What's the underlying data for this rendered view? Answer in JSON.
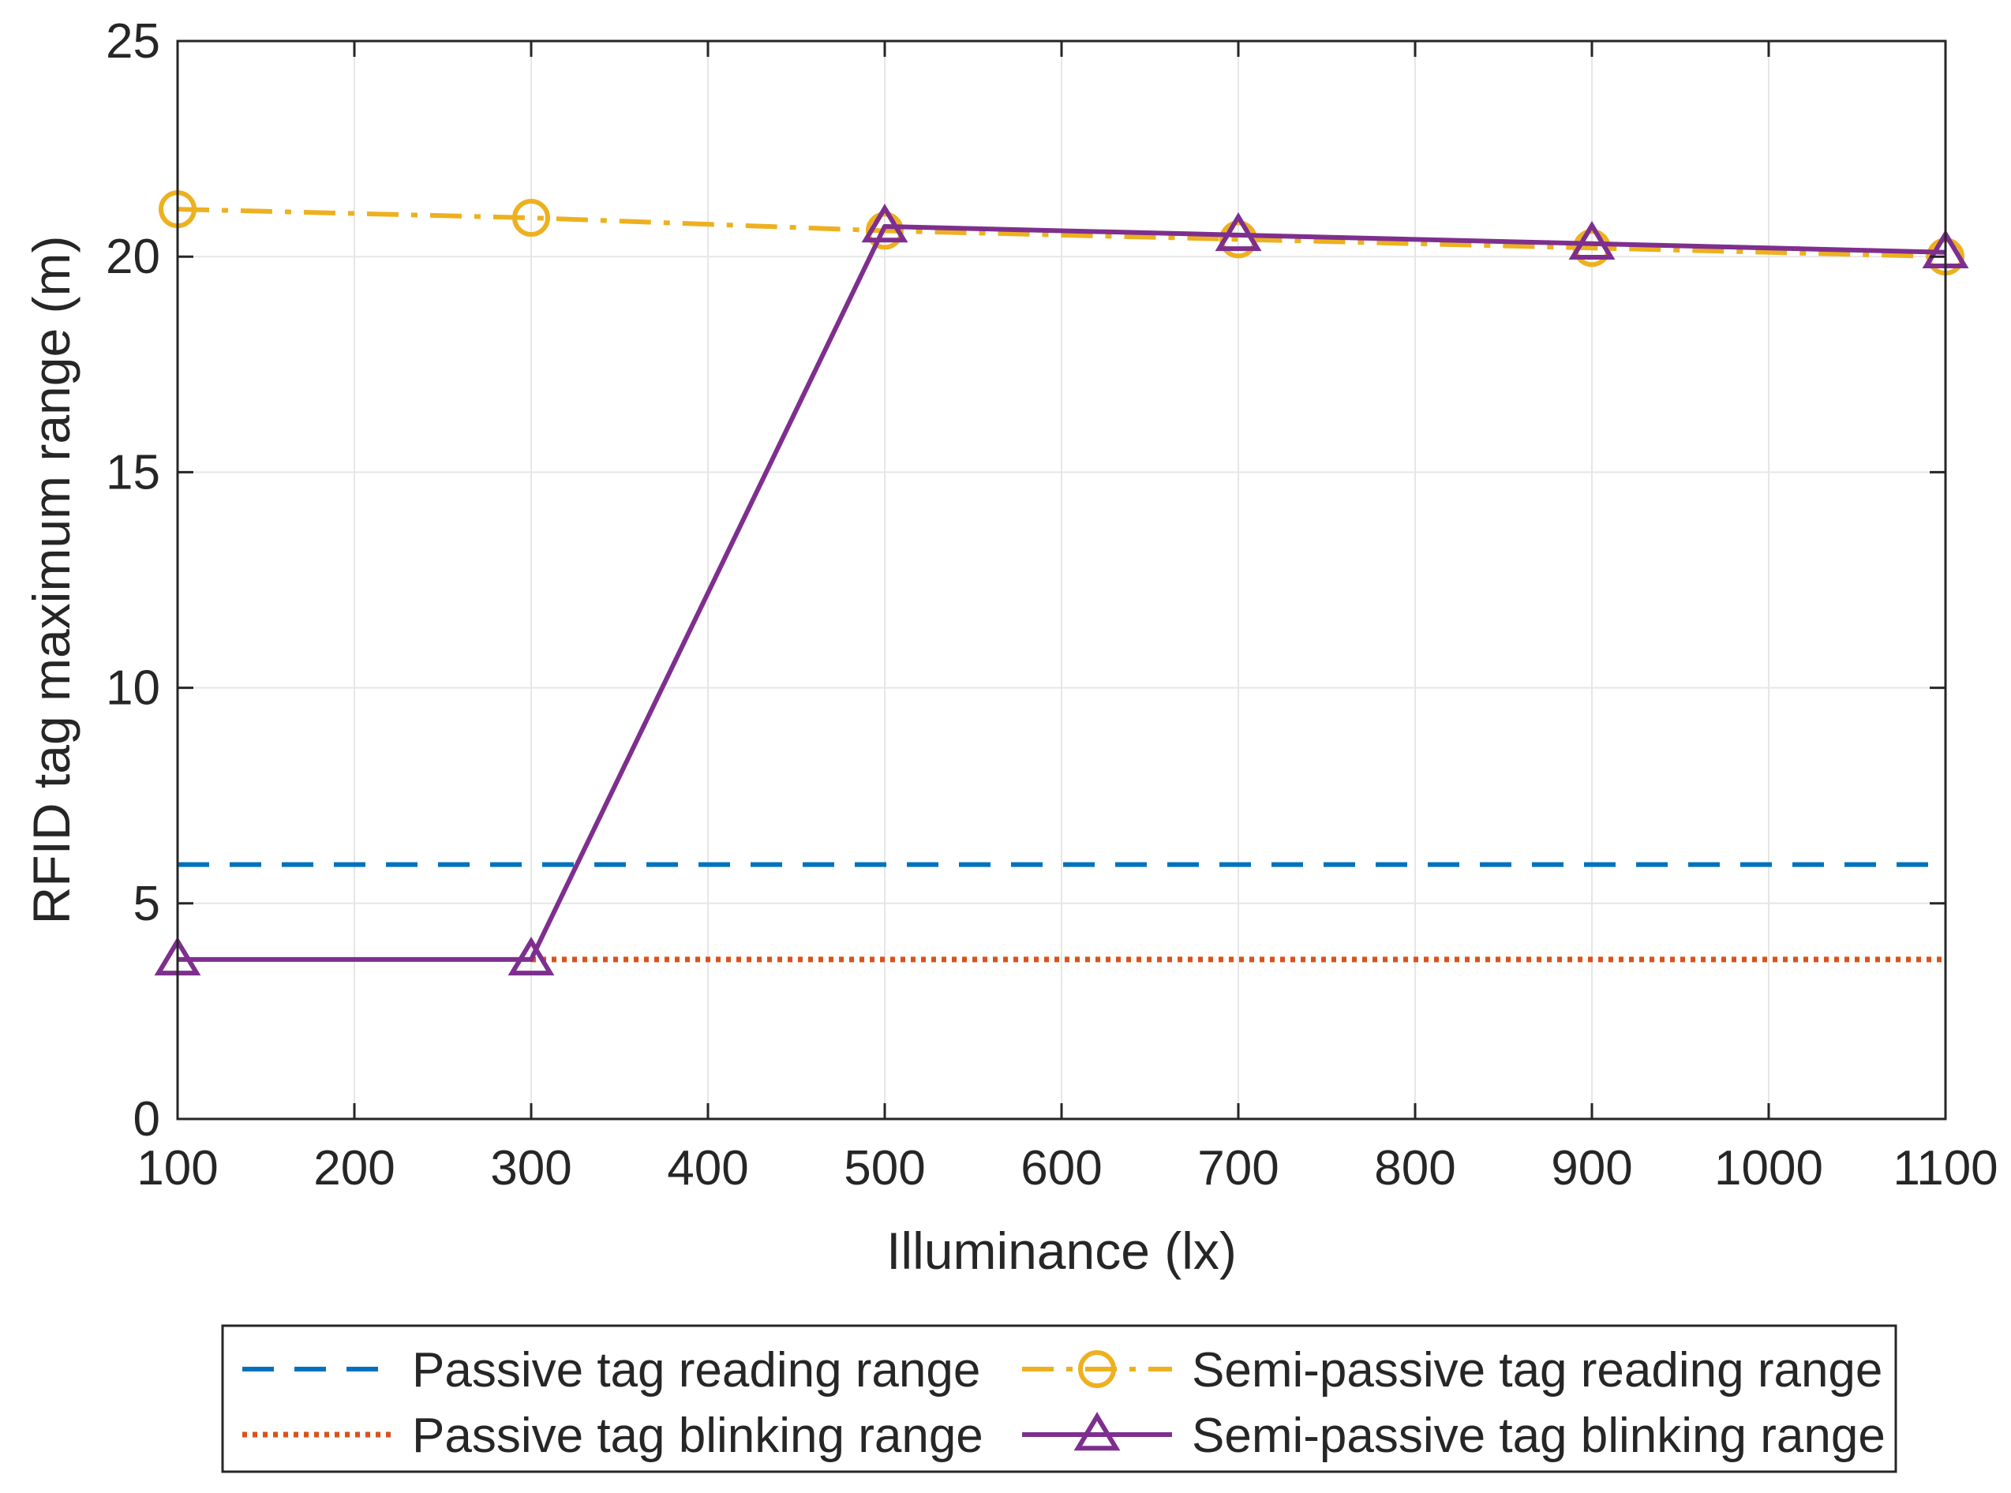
{
  "chart_data": {
    "type": "line",
    "title": "",
    "xlabel": "Illuminance (lx)",
    "ylabel": "RFID tag maximum range (m)",
    "xlim": [
      100,
      1100
    ],
    "ylim": [
      0,
      25
    ],
    "xticks": [
      100,
      200,
      300,
      400,
      500,
      600,
      700,
      800,
      900,
      1000,
      1100
    ],
    "yticks": [
      0,
      5,
      10,
      15,
      20,
      25
    ],
    "grid": true,
    "legend_position": "bottom-outside",
    "series": [
      {
        "name": "Passive tag reading range",
        "color": "#0072BD",
        "style": "dashed",
        "marker": "none",
        "x": [
          100,
          1100
        ],
        "y": [
          5.9,
          5.9
        ]
      },
      {
        "name": "Passive tag blinking range",
        "color": "#D95319",
        "style": "dotted",
        "marker": "none",
        "x": [
          300,
          1100
        ],
        "y": [
          3.7,
          3.7
        ]
      },
      {
        "name": "Semi-passive tag reading range",
        "color": "#EDB120",
        "style": "dashdot",
        "marker": "circle",
        "x": [
          100,
          300,
          500,
          700,
          900,
          1100
        ],
        "y": [
          21.1,
          20.9,
          20.6,
          20.4,
          20.2,
          20.0
        ]
      },
      {
        "name": "Semi-passive tag blinking range",
        "color": "#7E2F8E",
        "style": "solid",
        "marker": "triangle",
        "x": [
          100,
          300,
          500,
          700,
          900,
          1100
        ],
        "y": [
          3.7,
          3.7,
          20.7,
          20.5,
          20.3,
          20.1
        ]
      }
    ]
  }
}
